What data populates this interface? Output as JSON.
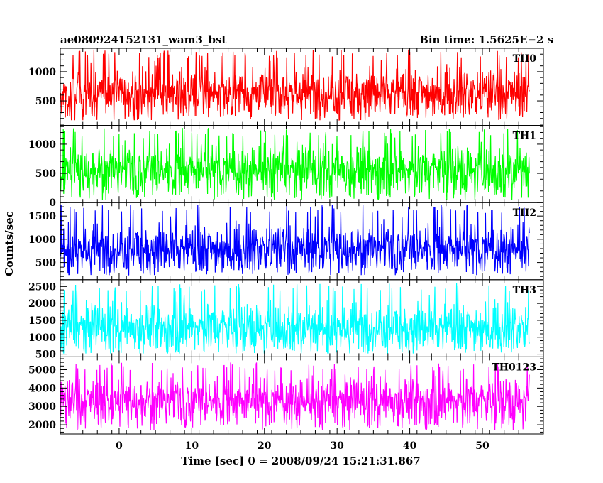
{
  "header": {
    "title": "ae080924152131_wam3_bst",
    "bin_time": "Bin time: 1.5625E−2 s"
  },
  "chart_data": {
    "type": "line",
    "title": "ae080924152131_wam3_bst",
    "subtitle": "Bin time: 1.5625E−2 s",
    "xlabel": "Time [sec] 0 = 2008/09/24 15:21:31.867",
    "ylabel": "Counts/sec",
    "xlim": [
      -8.1,
      58.4
    ],
    "x_range": [
      -8.1,
      56.5
    ],
    "bin_time_s": 0.015625,
    "xticks": [
      0,
      10,
      20,
      30,
      40,
      50
    ],
    "xtick_labels": [
      "0",
      "10",
      "20",
      "30",
      "40",
      "50"
    ],
    "grid": false,
    "panels": [
      {
        "name": "TH0",
        "color": "#ff0000",
        "ylim": [
          80,
          1400
        ],
        "yticks": [
          500,
          1000
        ],
        "ytick_labels": [
          "500",
          "1000"
        ],
        "mean": 650,
        "low": 170,
        "high": 1380
      },
      {
        "name": "TH1",
        "color": "#00ff00",
        "ylim": [
          0,
          1320
        ],
        "yticks": [
          0,
          500,
          1000
        ],
        "ytick_labels": [
          "0",
          "500",
          "1000"
        ],
        "mean": 560,
        "low": 40,
        "high": 1280
      },
      {
        "name": "TH2",
        "color": "#0000ff",
        "ylim": [
          130,
          1790
        ],
        "yticks": [
          500,
          1000,
          1500
        ],
        "ytick_labels": [
          "500",
          "1000",
          "1500"
        ],
        "mean": 800,
        "low": 230,
        "high": 1750
      },
      {
        "name": "TH3",
        "color": "#00ffff",
        "ylim": [
          420,
          2700
        ],
        "yticks": [
          500,
          1000,
          1500,
          2000,
          2500
        ],
        "ytick_labels": [
          "500",
          "1000",
          "1500",
          "2000",
          "2500"
        ],
        "mean": 1300,
        "low": 520,
        "high": 2600
      },
      {
        "name": "TH0123",
        "color": "#ff00ff",
        "ylim": [
          1500,
          5700
        ],
        "yticks": [
          2000,
          3000,
          4000,
          5000
        ],
        "ytick_labels": [
          "2000",
          "3000",
          "4000",
          "5000"
        ],
        "mean": 3300,
        "low": 1700,
        "high": 5400
      }
    ]
  }
}
